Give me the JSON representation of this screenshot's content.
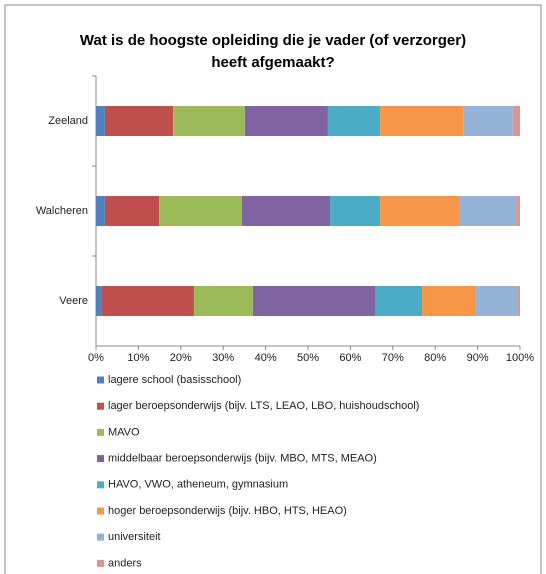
{
  "chart_data": {
    "type": "bar",
    "orientation": "horizontal",
    "stacked": true,
    "title": "Wat is de hoogste opleiding die je vader (of verzorger) heeft afgemaakt?",
    "categories": [
      "Zeeland",
      "Walcheren",
      "Veere"
    ],
    "series": [
      {
        "name": "lagere school (basisschool)",
        "color": "#4f81bd",
        "values": [
          2.1,
          2.1,
          1.2
        ]
      },
      {
        "name": "lager beroepsonderwijs (bijv. LTS, LEAO, LBO, huishoudschool)",
        "color": "#c0504d",
        "values": [
          16.1,
          12.8,
          21.9
        ]
      },
      {
        "name": "MAVO",
        "color": "#9bbb59",
        "values": [
          16.9,
          19.5,
          13.9
        ]
      },
      {
        "name": "middelbaar beroepsonderwijs (bijv. MBO, MTS, MEAO)",
        "color": "#8064a2",
        "values": [
          19.6,
          20.8,
          28.8
        ]
      },
      {
        "name": "HAVO, VWO, atheneum, gymnasium",
        "color": "#4bacc6",
        "values": [
          12.3,
          11.8,
          11.1
        ]
      },
      {
        "name": "hoger beroepsonderwijs (bijv. HBO, HTS, HEAO)",
        "color": "#f79646",
        "values": [
          19.6,
          18.6,
          12.7
        ]
      },
      {
        "name": "universiteit",
        "color": "#95b3d7",
        "values": [
          11.7,
          13.5,
          9.9
        ]
      },
      {
        "name": "anders",
        "color": "#d99694",
        "values": [
          1.7,
          0.9,
          0.5
        ]
      }
    ],
    "xlim": [
      0,
      100
    ],
    "xticks": [
      {
        "value": 0,
        "label": "0%"
      },
      {
        "value": 10,
        "label": "10%"
      },
      {
        "value": 20,
        "label": "20%"
      },
      {
        "value": 30,
        "label": "30%"
      },
      {
        "value": 40,
        "label": "40%"
      },
      {
        "value": 50,
        "label": "50%"
      },
      {
        "value": 60,
        "label": "60%"
      },
      {
        "value": 70,
        "label": "70%"
      },
      {
        "value": 80,
        "label": "80%"
      },
      {
        "value": 90,
        "label": "90%"
      },
      {
        "value": 100,
        "label": "100%"
      }
    ],
    "grid": false,
    "legend": "bottom"
  }
}
